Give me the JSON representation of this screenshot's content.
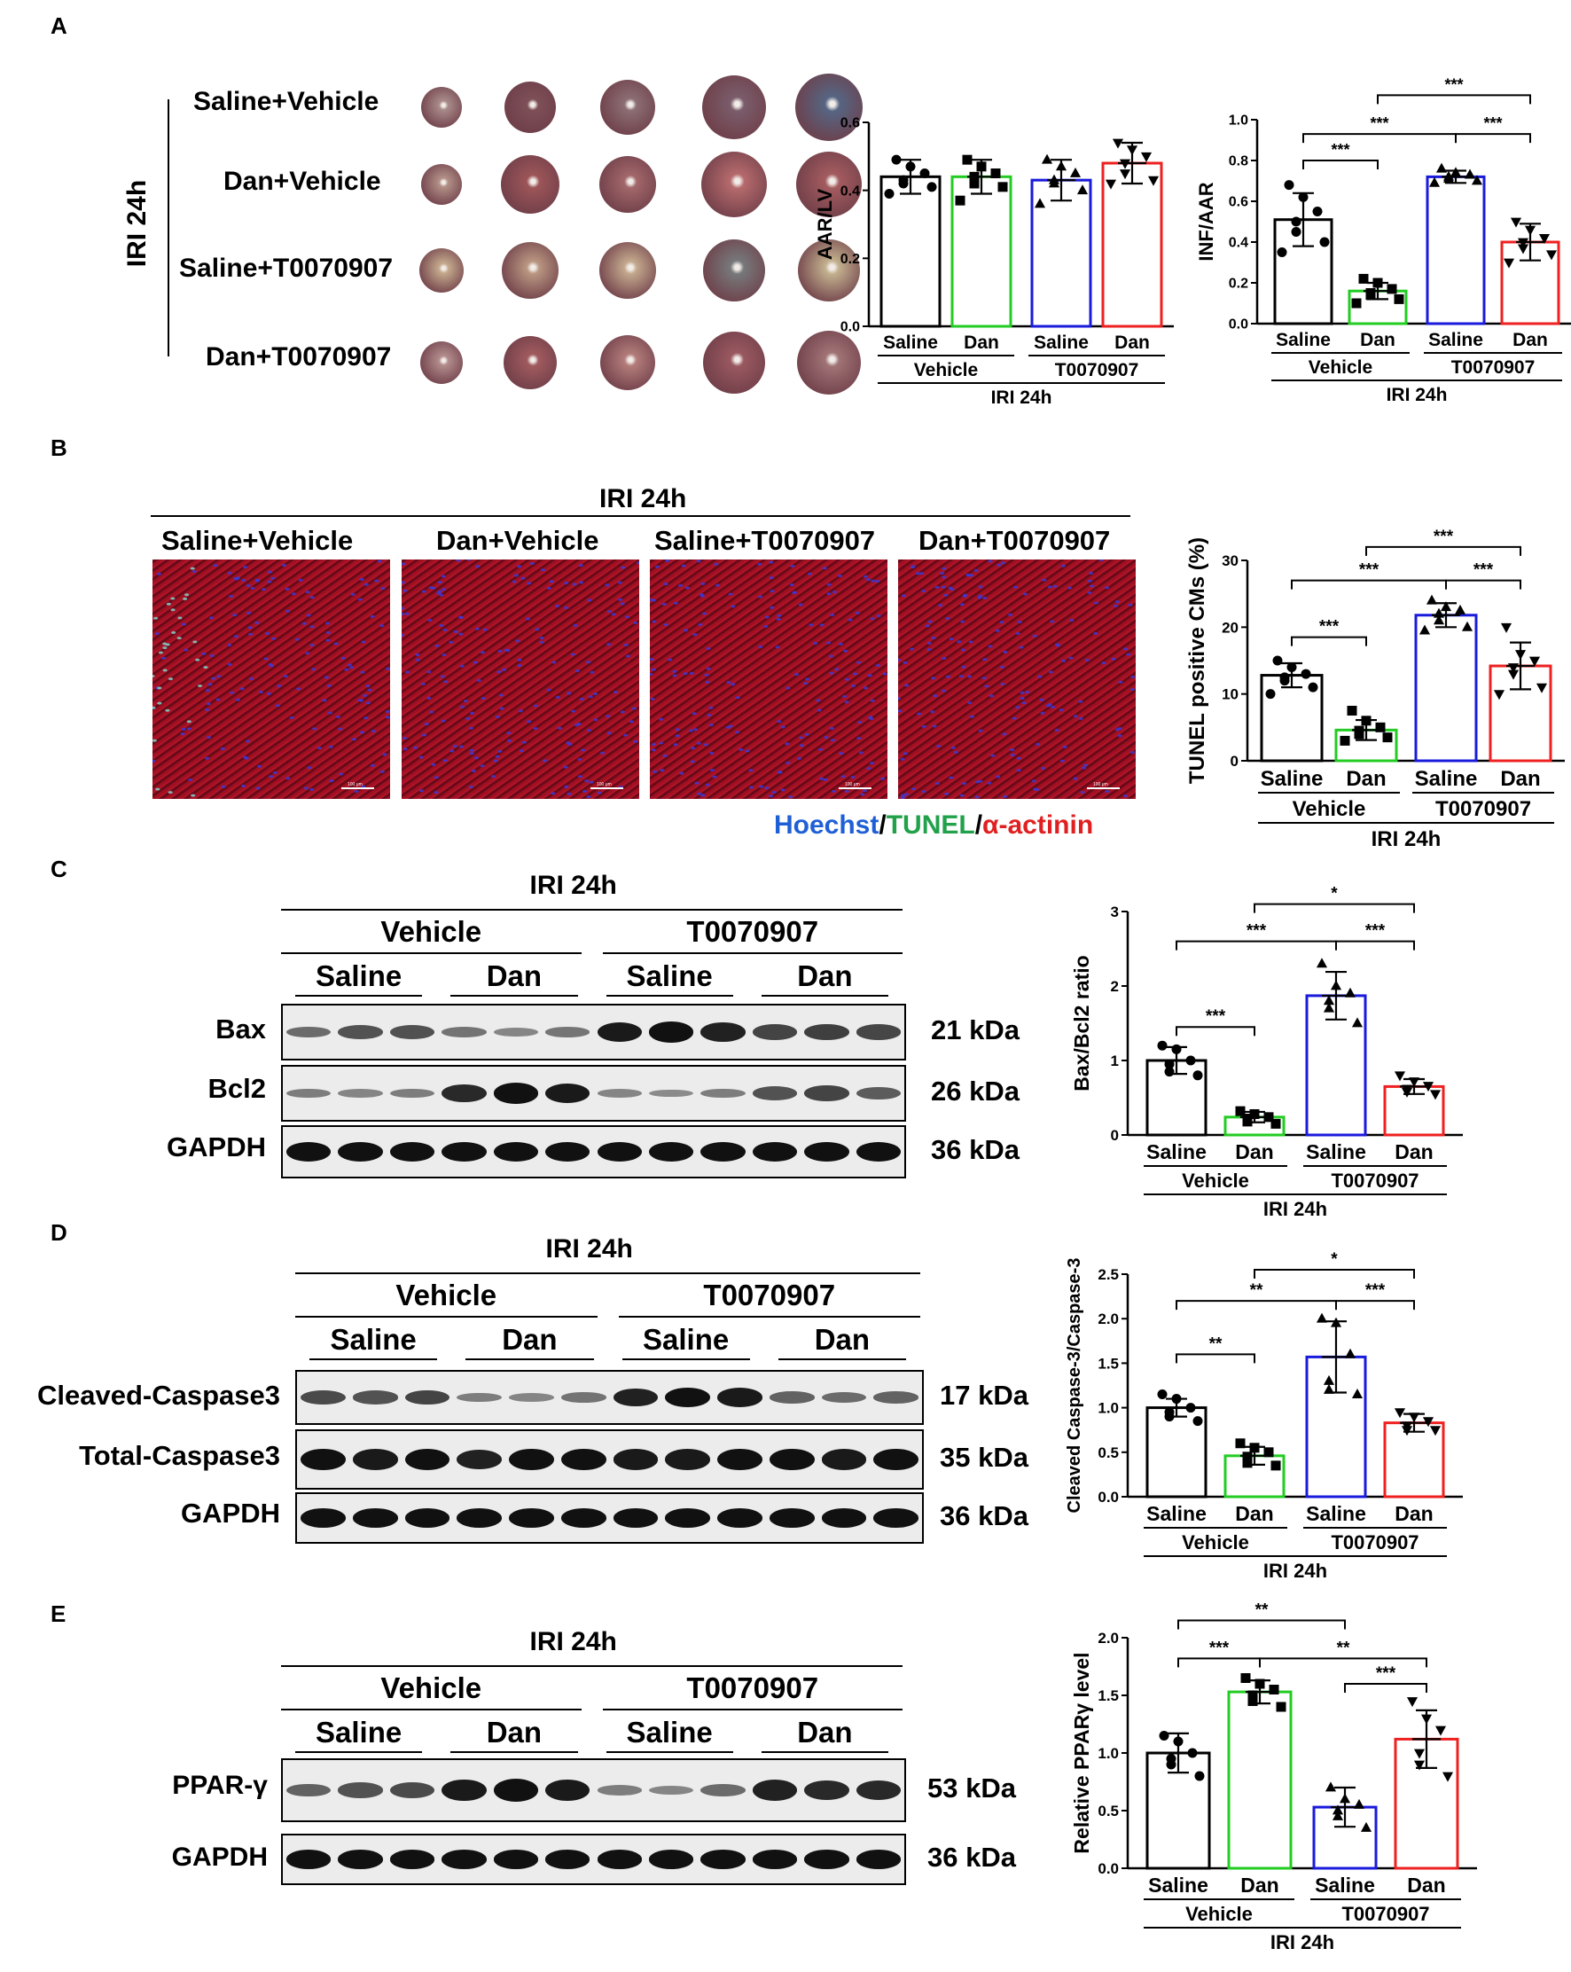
{
  "panel_letters": [
    "A",
    "B",
    "C",
    "D",
    "E"
  ],
  "panelA": {
    "side_label": "IRI 24h",
    "rows": [
      "Saline+Vehicle",
      "Dan+Vehicle",
      "Saline+T0070907",
      "Dan+T0070907"
    ]
  },
  "panelB": {
    "header": "IRI 24h",
    "columns": [
      "Saline+Vehicle",
      "Dan+Vehicle",
      "Saline+T0070907",
      "Dan+T0070907"
    ],
    "scale_text": "100 μm",
    "stain_legend": [
      {
        "text": "Hoechst",
        "color": "#1f5fd6"
      },
      {
        "text": "/",
        "color": "#000000"
      },
      {
        "text": "TUNEL",
        "color": "#21a14a"
      },
      {
        "text": "/",
        "color": "#000000"
      },
      {
        "text": "α-actinin",
        "color": "#e02020"
      }
    ]
  },
  "blots": [
    {
      "id": "C",
      "header": "IRI 24h",
      "groups": [
        "Vehicle",
        "T0070907"
      ],
      "subgroups": [
        "Saline",
        "Dan",
        "Saline",
        "Dan"
      ],
      "rows": [
        {
          "name": "Bax",
          "kda": "21 kDa",
          "intensity": [
            0.45,
            0.6,
            0.62,
            0.4,
            0.3,
            0.38,
            0.95,
            1.0,
            0.9,
            0.7,
            0.72,
            0.68
          ]
        },
        {
          "name": "Bcl2",
          "kda": "26 kDa",
          "intensity": [
            0.35,
            0.3,
            0.35,
            0.85,
            1.0,
            0.95,
            0.3,
            0.25,
            0.35,
            0.6,
            0.7,
            0.55
          ]
        },
        {
          "name": "GAPDH",
          "kda": "36 kDa",
          "intensity": [
            1,
            1,
            1,
            1,
            1,
            1,
            1,
            1,
            1,
            1,
            1,
            1
          ]
        }
      ]
    },
    {
      "id": "D",
      "header": "IRI 24h",
      "groups": [
        "Vehicle",
        "T0070907"
      ],
      "subgroups": [
        "Saline",
        "Dan",
        "Saline",
        "Dan"
      ],
      "rows": [
        {
          "name": "Cleaved-Caspase3",
          "kda": "17 kDa",
          "intensity": [
            0.65,
            0.6,
            0.7,
            0.35,
            0.3,
            0.4,
            0.9,
            1.0,
            0.95,
            0.5,
            0.45,
            0.5
          ]
        },
        {
          "name": "Total-Caspase3",
          "kda": "35 kDa",
          "intensity": [
            1,
            0.95,
            1,
            0.9,
            1,
            1,
            0.95,
            0.95,
            1,
            1,
            0.95,
            1
          ]
        },
        {
          "name": "GAPDH",
          "kda": "36 kDa",
          "intensity": [
            1,
            1,
            1,
            1,
            1,
            1,
            1,
            1,
            1,
            1,
            1,
            1
          ]
        }
      ]
    },
    {
      "id": "E",
      "header": "IRI 24h",
      "groups": [
        "Vehicle",
        "T0070907"
      ],
      "subgroups": [
        "Saline",
        "Dan",
        "Saline",
        "Dan"
      ],
      "rows": [
        {
          "name": "PPAR-γ",
          "kda": "53 kDa",
          "intensity": [
            0.5,
            0.6,
            0.65,
            0.95,
            1.0,
            0.95,
            0.35,
            0.3,
            0.45,
            0.9,
            0.85,
            0.85
          ]
        },
        {
          "name": "GAPDH",
          "kda": "36 kDa",
          "intensity": [
            1,
            1,
            1,
            1,
            1,
            1,
            1,
            1,
            1,
            1,
            1,
            1
          ]
        }
      ]
    }
  ],
  "chart_data": [
    {
      "id": "aar",
      "type": "bar",
      "ylabel": "AAR/LV",
      "ylim": [
        0,
        0.6
      ],
      "yticks": [
        "0.0",
        "0.2",
        "0.4",
        "0.6"
      ],
      "categories": [
        "Saline",
        "Dan",
        "Saline",
        "Dan"
      ],
      "groups": [
        "Vehicle",
        "T0070907"
      ],
      "group_label": "IRI 24h",
      "values": [
        0.44,
        0.44,
        0.43,
        0.48
      ],
      "sd": [
        0.05,
        0.05,
        0.06,
        0.06
      ],
      "colors": [
        "#000000",
        "#22cc22",
        "#1a1adc",
        "#ee2020"
      ],
      "markers": [
        "circle",
        "square",
        "triangle",
        "tri-down"
      ],
      "points": [
        [
          0.49,
          0.47,
          0.45,
          0.43,
          0.42,
          0.41,
          0.39
        ],
        [
          0.49,
          0.47,
          0.45,
          0.44,
          0.42,
          0.41,
          0.37
        ],
        [
          0.49,
          0.47,
          0.45,
          0.43,
          0.42,
          0.4,
          0.36
        ],
        [
          0.54,
          0.52,
          0.5,
          0.48,
          0.45,
          0.43,
          0.42
        ]
      ],
      "comparisons": []
    },
    {
      "id": "inf",
      "type": "bar",
      "ylabel": "INF/AAR",
      "ylim": [
        0,
        1.0
      ],
      "yticks": [
        "0.0",
        "0.2",
        "0.4",
        "0.6",
        "0.8",
        "1.0"
      ],
      "categories": [
        "Saline",
        "Dan",
        "Saline",
        "Dan"
      ],
      "groups": [
        "Vehicle",
        "T0070907"
      ],
      "group_label": "IRI 24h",
      "values": [
        0.51,
        0.16,
        0.72,
        0.4
      ],
      "sd": [
        0.13,
        0.04,
        0.03,
        0.09
      ],
      "colors": [
        "#000000",
        "#22cc22",
        "#1a1adc",
        "#ee2020"
      ],
      "markers": [
        "circle",
        "square",
        "triangle",
        "tri-down"
      ],
      "points": [
        [
          0.68,
          0.62,
          0.55,
          0.5,
          0.45,
          0.4,
          0.35
        ],
        [
          0.22,
          0.2,
          0.17,
          0.15,
          0.14,
          0.12,
          0.1
        ],
        [
          0.76,
          0.74,
          0.73,
          0.72,
          0.71,
          0.7,
          0.69
        ],
        [
          0.5,
          0.46,
          0.42,
          0.4,
          0.37,
          0.34,
          0.3
        ]
      ],
      "comparisons": [
        {
          "a": 0,
          "b": 1,
          "label": "***",
          "y": 0.8
        },
        {
          "a": 0,
          "b": 2,
          "label": "***",
          "y": 0.93
        },
        {
          "a": 2,
          "b": 3,
          "label": "***",
          "y": 0.93
        },
        {
          "a": 1,
          "b": 3,
          "label": "***",
          "y": 1.12
        }
      ]
    },
    {
      "id": "tunel",
      "type": "bar",
      "ylabel": "TUNEL positive CMs (%)",
      "ylim": [
        0,
        30
      ],
      "yticks": [
        "0",
        "10",
        "20",
        "30"
      ],
      "categories": [
        "Saline",
        "Dan",
        "Saline",
        "Dan"
      ],
      "groups": [
        "Vehicle",
        "T0070907"
      ],
      "group_label": "IRI 24h",
      "values": [
        12.8,
        4.6,
        21.8,
        14.2
      ],
      "sd": [
        1.8,
        1.5,
        1.8,
        3.5
      ],
      "colors": [
        "#000000",
        "#22cc22",
        "#1a1adc",
        "#ee2020"
      ],
      "markers": [
        "circle",
        "square",
        "triangle",
        "tri-down"
      ],
      "points": [
        [
          15,
          14,
          13,
          12.5,
          12,
          11,
          10
        ],
        [
          7.5,
          6,
          5,
          4.5,
          4,
          3.5,
          3
        ],
        [
          24,
          23,
          22.5,
          22,
          21,
          20,
          19.5
        ],
        [
          20,
          16,
          15,
          14,
          13,
          11,
          10
        ]
      ],
      "comparisons": [
        {
          "a": 0,
          "b": 1,
          "label": "***",
          "y": 18.5
        },
        {
          "a": 0,
          "b": 2,
          "label": "***",
          "y": 27
        },
        {
          "a": 2,
          "b": 3,
          "label": "***",
          "y": 27
        },
        {
          "a": 1,
          "b": 3,
          "label": "***",
          "y": 32
        }
      ]
    },
    {
      "id": "baxbcl2",
      "type": "bar",
      "ylabel": "Bax/Bcl2 ratio",
      "ylim": [
        0,
        3
      ],
      "yticks": [
        "0",
        "1",
        "2",
        "3"
      ],
      "categories": [
        "Saline",
        "Dan",
        "Saline",
        "Dan"
      ],
      "groups": [
        "Vehicle",
        "T0070907"
      ],
      "group_label": "IRI 24h",
      "values": [
        1.0,
        0.24,
        1.87,
        0.65
      ],
      "sd": [
        0.18,
        0.07,
        0.32,
        0.1
      ],
      "colors": [
        "#000000",
        "#22cc22",
        "#1a1adc",
        "#ee2020"
      ],
      "markers": [
        "circle",
        "square",
        "triangle",
        "tri-down"
      ],
      "points": [
        [
          1.2,
          1.15,
          1.0,
          0.95,
          0.85,
          0.8
        ],
        [
          0.32,
          0.28,
          0.24,
          0.22,
          0.18,
          0.15
        ],
        [
          2.3,
          2.0,
          1.9,
          1.8,
          1.7,
          1.5
        ],
        [
          0.8,
          0.72,
          0.66,
          0.62,
          0.58,
          0.55
        ]
      ],
      "comparisons": [
        {
          "a": 0,
          "b": 1,
          "label": "***",
          "y": 1.45
        },
        {
          "a": 0,
          "b": 2,
          "label": "***",
          "y": 2.6
        },
        {
          "a": 2,
          "b": 3,
          "label": "***",
          "y": 2.6
        },
        {
          "a": 1,
          "b": 3,
          "label": "*",
          "y": 3.1
        }
      ]
    },
    {
      "id": "casp",
      "type": "bar",
      "ylabel": "Cleaved Caspase-3/Caspase-3",
      "ylim": [
        0,
        2.5
      ],
      "yticks": [
        "0.0",
        "0.5",
        "1.0",
        "1.5",
        "2.0",
        "2.5"
      ],
      "categories": [
        "Saline",
        "Dan",
        "Saline",
        "Dan"
      ],
      "groups": [
        "Vehicle",
        "T0070907"
      ],
      "group_label": "IRI 24h",
      "values": [
        1.0,
        0.46,
        1.57,
        0.83
      ],
      "sd": [
        0.1,
        0.1,
        0.4,
        0.1
      ],
      "colors": [
        "#000000",
        "#22cc22",
        "#1a1adc",
        "#ee2020"
      ],
      "markers": [
        "circle",
        "square",
        "triangle",
        "tri-down"
      ],
      "points": [
        [
          1.15,
          1.1,
          1.0,
          0.95,
          0.9,
          0.85
        ],
        [
          0.6,
          0.55,
          0.5,
          0.45,
          0.38,
          0.35
        ],
        [
          2.0,
          1.95,
          1.6,
          1.3,
          1.2,
          1.15
        ],
        [
          0.95,
          0.9,
          0.85,
          0.8,
          0.75,
          0.75
        ]
      ],
      "comparisons": [
        {
          "a": 0,
          "b": 1,
          "label": "**",
          "y": 1.6
        },
        {
          "a": 0,
          "b": 2,
          "label": "**",
          "y": 2.2
        },
        {
          "a": 2,
          "b": 3,
          "label": "***",
          "y": 2.2
        },
        {
          "a": 1,
          "b": 3,
          "label": "*",
          "y": 2.55
        }
      ]
    },
    {
      "id": "ppar",
      "type": "bar",
      "ylabel": "Relative PPARγ level",
      "ylim": [
        0,
        2.0
      ],
      "yticks": [
        "0.0",
        "0.5",
        "1.0",
        "1.5",
        "2.0"
      ],
      "categories": [
        "Saline",
        "Dan",
        "Saline",
        "Dan"
      ],
      "groups": [
        "Vehicle",
        "T0070907"
      ],
      "group_label": "IRI 24h",
      "values": [
        1.0,
        1.53,
        0.53,
        1.12
      ],
      "sd": [
        0.17,
        0.1,
        0.17,
        0.25
      ],
      "colors": [
        "#000000",
        "#22cc22",
        "#1a1adc",
        "#ee2020"
      ],
      "markers": [
        "circle",
        "square",
        "triangle",
        "tri-down"
      ],
      "points": [
        [
          1.15,
          1.1,
          1.0,
          0.95,
          0.9,
          0.8
        ],
        [
          1.65,
          1.6,
          1.55,
          1.5,
          1.45,
          1.4
        ],
        [
          0.7,
          0.6,
          0.55,
          0.5,
          0.45,
          0.35
        ],
        [
          1.45,
          1.3,
          1.2,
          1.0,
          0.9,
          0.8
        ]
      ],
      "comparisons": [
        {
          "a": 0,
          "b": 1,
          "label": "***",
          "y": 1.82
        },
        {
          "a": 1,
          "b": 3,
          "label": "**",
          "y": 1.82
        },
        {
          "a": 2,
          "b": 3,
          "label": "***",
          "y": 1.6
        },
        {
          "a": 0,
          "b": 2,
          "label": "**",
          "y": 2.15
        }
      ]
    }
  ]
}
